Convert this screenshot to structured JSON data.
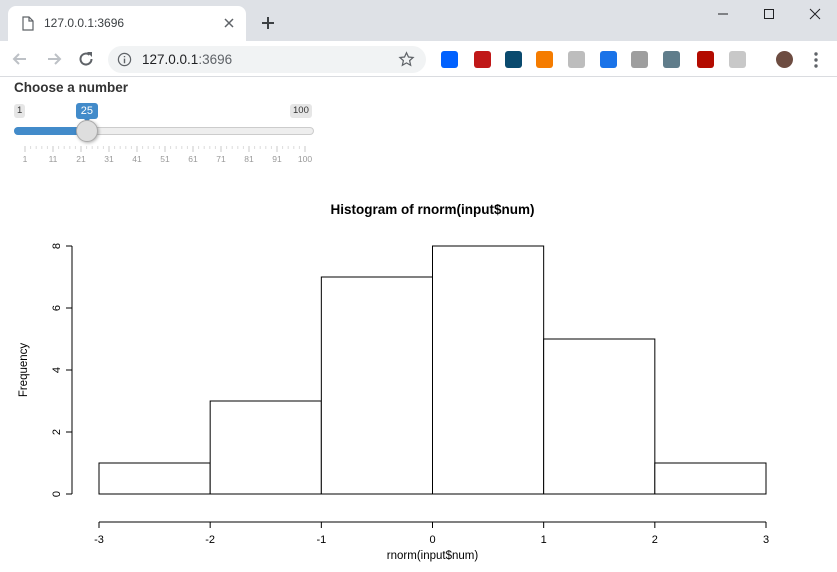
{
  "browser": {
    "tab_title": "127.0.0.1:3696",
    "url_host": "127.0.0.1",
    "url_port": ":3696",
    "icons": [
      "page-icon",
      "close-icon",
      "plus-icon",
      "minimize-icon",
      "maximize-icon",
      "window-close-icon",
      "back-arrow-icon",
      "forward-arrow-icon",
      "reload-icon",
      "info-icon",
      "star-icon",
      "menu-icon"
    ],
    "extensions": [
      {
        "name": "dropbox-icon",
        "color": "#0061fe"
      },
      {
        "name": "mcafee-icon",
        "color": "#c01818"
      },
      {
        "name": "seo-icon",
        "color": "#0a4a6e"
      },
      {
        "name": "analytics-icon",
        "color": "#f57c00"
      },
      {
        "name": "gray-ext-icon",
        "color": "#bdbdbd"
      },
      {
        "name": "compass-icon",
        "color": "#1a73e8"
      },
      {
        "name": "skype-icon",
        "color": "#9e9e9e"
      },
      {
        "name": "satellite-icon",
        "color": "#607d8b"
      },
      {
        "name": "acrobat-icon",
        "color": "#b30b00"
      },
      {
        "name": "m-ext-icon",
        "color": "#c8c8c8"
      },
      {
        "name": "avatar-icon",
        "color": "#6d4c41"
      }
    ]
  },
  "slider": {
    "label": "Choose a number",
    "min": "1",
    "max": "100",
    "value": "25",
    "fraction": 0.2424,
    "bar_color": "#428bca",
    "grid_labels": [
      "1",
      "11",
      "21",
      "31",
      "41",
      "51",
      "61",
      "71",
      "81",
      "91",
      "100"
    ]
  },
  "chart_data": {
    "type": "bar",
    "title": "Histogram of rnorm(input$num)",
    "xlabel": "rnorm(input$num)",
    "ylabel": "Frequency",
    "bins": [
      [
        -3,
        -2
      ],
      [
        -2,
        -1
      ],
      [
        -1,
        0
      ],
      [
        0,
        1
      ],
      [
        1,
        2
      ],
      [
        2,
        3
      ]
    ],
    "values": [
      1,
      3,
      7,
      8,
      5,
      1
    ],
    "xlim": [
      -3,
      3
    ],
    "ylim": [
      0,
      8
    ],
    "x_ticks": [
      "-3",
      "-2",
      "-1",
      "0",
      "1",
      "2",
      "3"
    ],
    "y_ticks": [
      "0",
      "2",
      "4",
      "6",
      "8"
    ],
    "grid": false,
    "bar_fill": "#ffffff",
    "bar_stroke": "#000000"
  }
}
